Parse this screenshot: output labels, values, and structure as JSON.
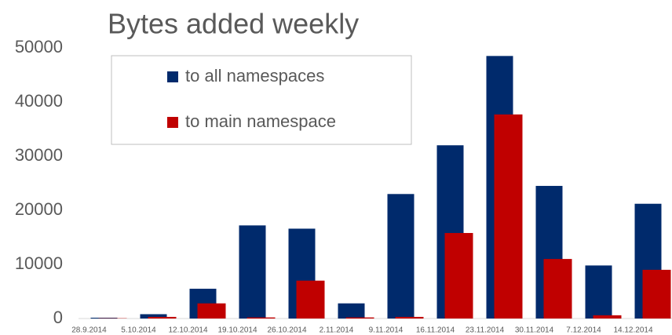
{
  "chart_data": {
    "type": "bar",
    "title": "Bytes added weekly",
    "categories": [
      "28.9.2014",
      "5.10.2014",
      "12.10.2014",
      "19.10.2014",
      "26.10.2014",
      "2.11.2014",
      "9.11.2014",
      "16.11.2014",
      "23.11.2014",
      "30.11.2014",
      "7.12.2014",
      "14.12.2014"
    ],
    "series": [
      {
        "name": "to all namespaces",
        "color": "#002a6c",
        "values": [
          150,
          800,
          5500,
          17200,
          16600,
          2800,
          23000,
          32000,
          48500,
          24500,
          9800,
          21200
        ]
      },
      {
        "name": "to main namespace",
        "color": "#c00000",
        "values": [
          50,
          300,
          2800,
          200,
          7000,
          200,
          300,
          15800,
          37700,
          11000,
          600,
          9000
        ]
      }
    ],
    "ylim": [
      0,
      50000
    ],
    "yticks": [
      0,
      10000,
      20000,
      30000,
      40000,
      50000
    ],
    "grid": false,
    "legend": "top-left"
  }
}
